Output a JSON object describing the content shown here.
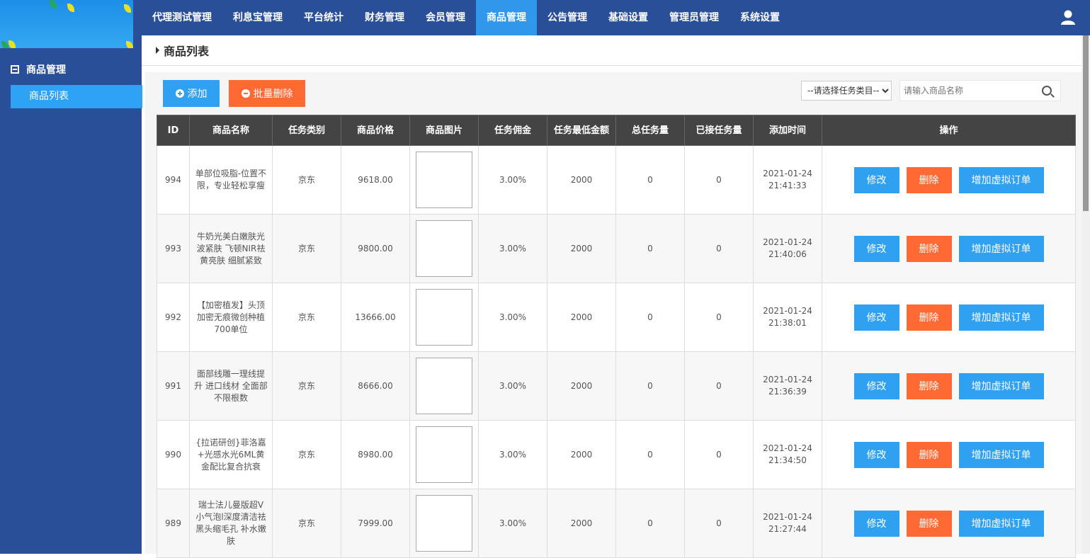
{
  "colors": {
    "nav_bg": "#2a4f99",
    "active": "#3097ea",
    "primary": "#30a0f0",
    "danger": "#ff6933",
    "table_header": "#444444"
  },
  "nav": {
    "items": [
      "代理测试管理",
      "利息宝管理",
      "平台统计",
      "财务管理",
      "会员管理",
      "商品管理",
      "公告管理",
      "基础设置",
      "管理员管理",
      "系统设置"
    ],
    "active_index": 5,
    "user_icon": "user-icon"
  },
  "sidebar": {
    "group": "商品管理",
    "item": "商品列表"
  },
  "breadcrumb": "商品列表",
  "toolbar": {
    "add": "添加",
    "batch_delete": "批量删除",
    "category_select": "--请选择任务类目--",
    "search_placeholder": "请输入商品名称"
  },
  "table": {
    "headers": [
      "ID",
      "商品名称",
      "任务类别",
      "商品价格",
      "商品图片",
      "任务佣金",
      "任务最低金额",
      "总任务量",
      "已接任务量",
      "添加时间",
      "操作"
    ],
    "actions": [
      "修改",
      "删除",
      "增加虚拟订单"
    ],
    "rows": [
      {
        "id": "994",
        "name": "单部位吸脂-位置不限，专业轻松享瘦",
        "type": "京东",
        "price": "9618.00",
        "commission": "3.00%",
        "min": "2000",
        "total": "0",
        "accepted": "0",
        "date": "2021-01-24",
        "time": "21:41:33"
      },
      {
        "id": "993",
        "name": "牛奶光美白嫩肤光波紧肤 飞顿NIR祛黄亮肤 细腻紧致",
        "type": "京东",
        "price": "9800.00",
        "commission": "3.00%",
        "min": "2000",
        "total": "0",
        "accepted": "0",
        "date": "2021-01-24",
        "time": "21:40:06"
      },
      {
        "id": "992",
        "name": "【加密植发】头顶加密无痕微创种植700单位",
        "type": "京东",
        "price": "13666.00",
        "commission": "3.00%",
        "min": "2000",
        "total": "0",
        "accepted": "0",
        "date": "2021-01-24",
        "time": "21:38:01"
      },
      {
        "id": "991",
        "name": "面部线雕一理线提升 进口线材 全面部 不限根数",
        "type": "京东",
        "price": "8666.00",
        "commission": "3.00%",
        "min": "2000",
        "total": "0",
        "accepted": "0",
        "date": "2021-01-24",
        "time": "21:36:39"
      },
      {
        "id": "990",
        "name": "{拉诺研创}菲洛嘉+光感水光6ML黄金配比复合抗衰",
        "type": "京东",
        "price": "8980.00",
        "commission": "3.00%",
        "min": "2000",
        "total": "0",
        "accepted": "0",
        "date": "2021-01-24",
        "time": "21:34:50"
      },
      {
        "id": "989",
        "name": "瑞士法儿曼版超V小气泡l深度清洁祛黑头缩毛孔 补水嫩肤",
        "type": "京东",
        "price": "7999.00",
        "commission": "3.00%",
        "min": "2000",
        "total": "0",
        "accepted": "0",
        "date": "2021-01-24",
        "time": "21:27:44"
      }
    ]
  }
}
